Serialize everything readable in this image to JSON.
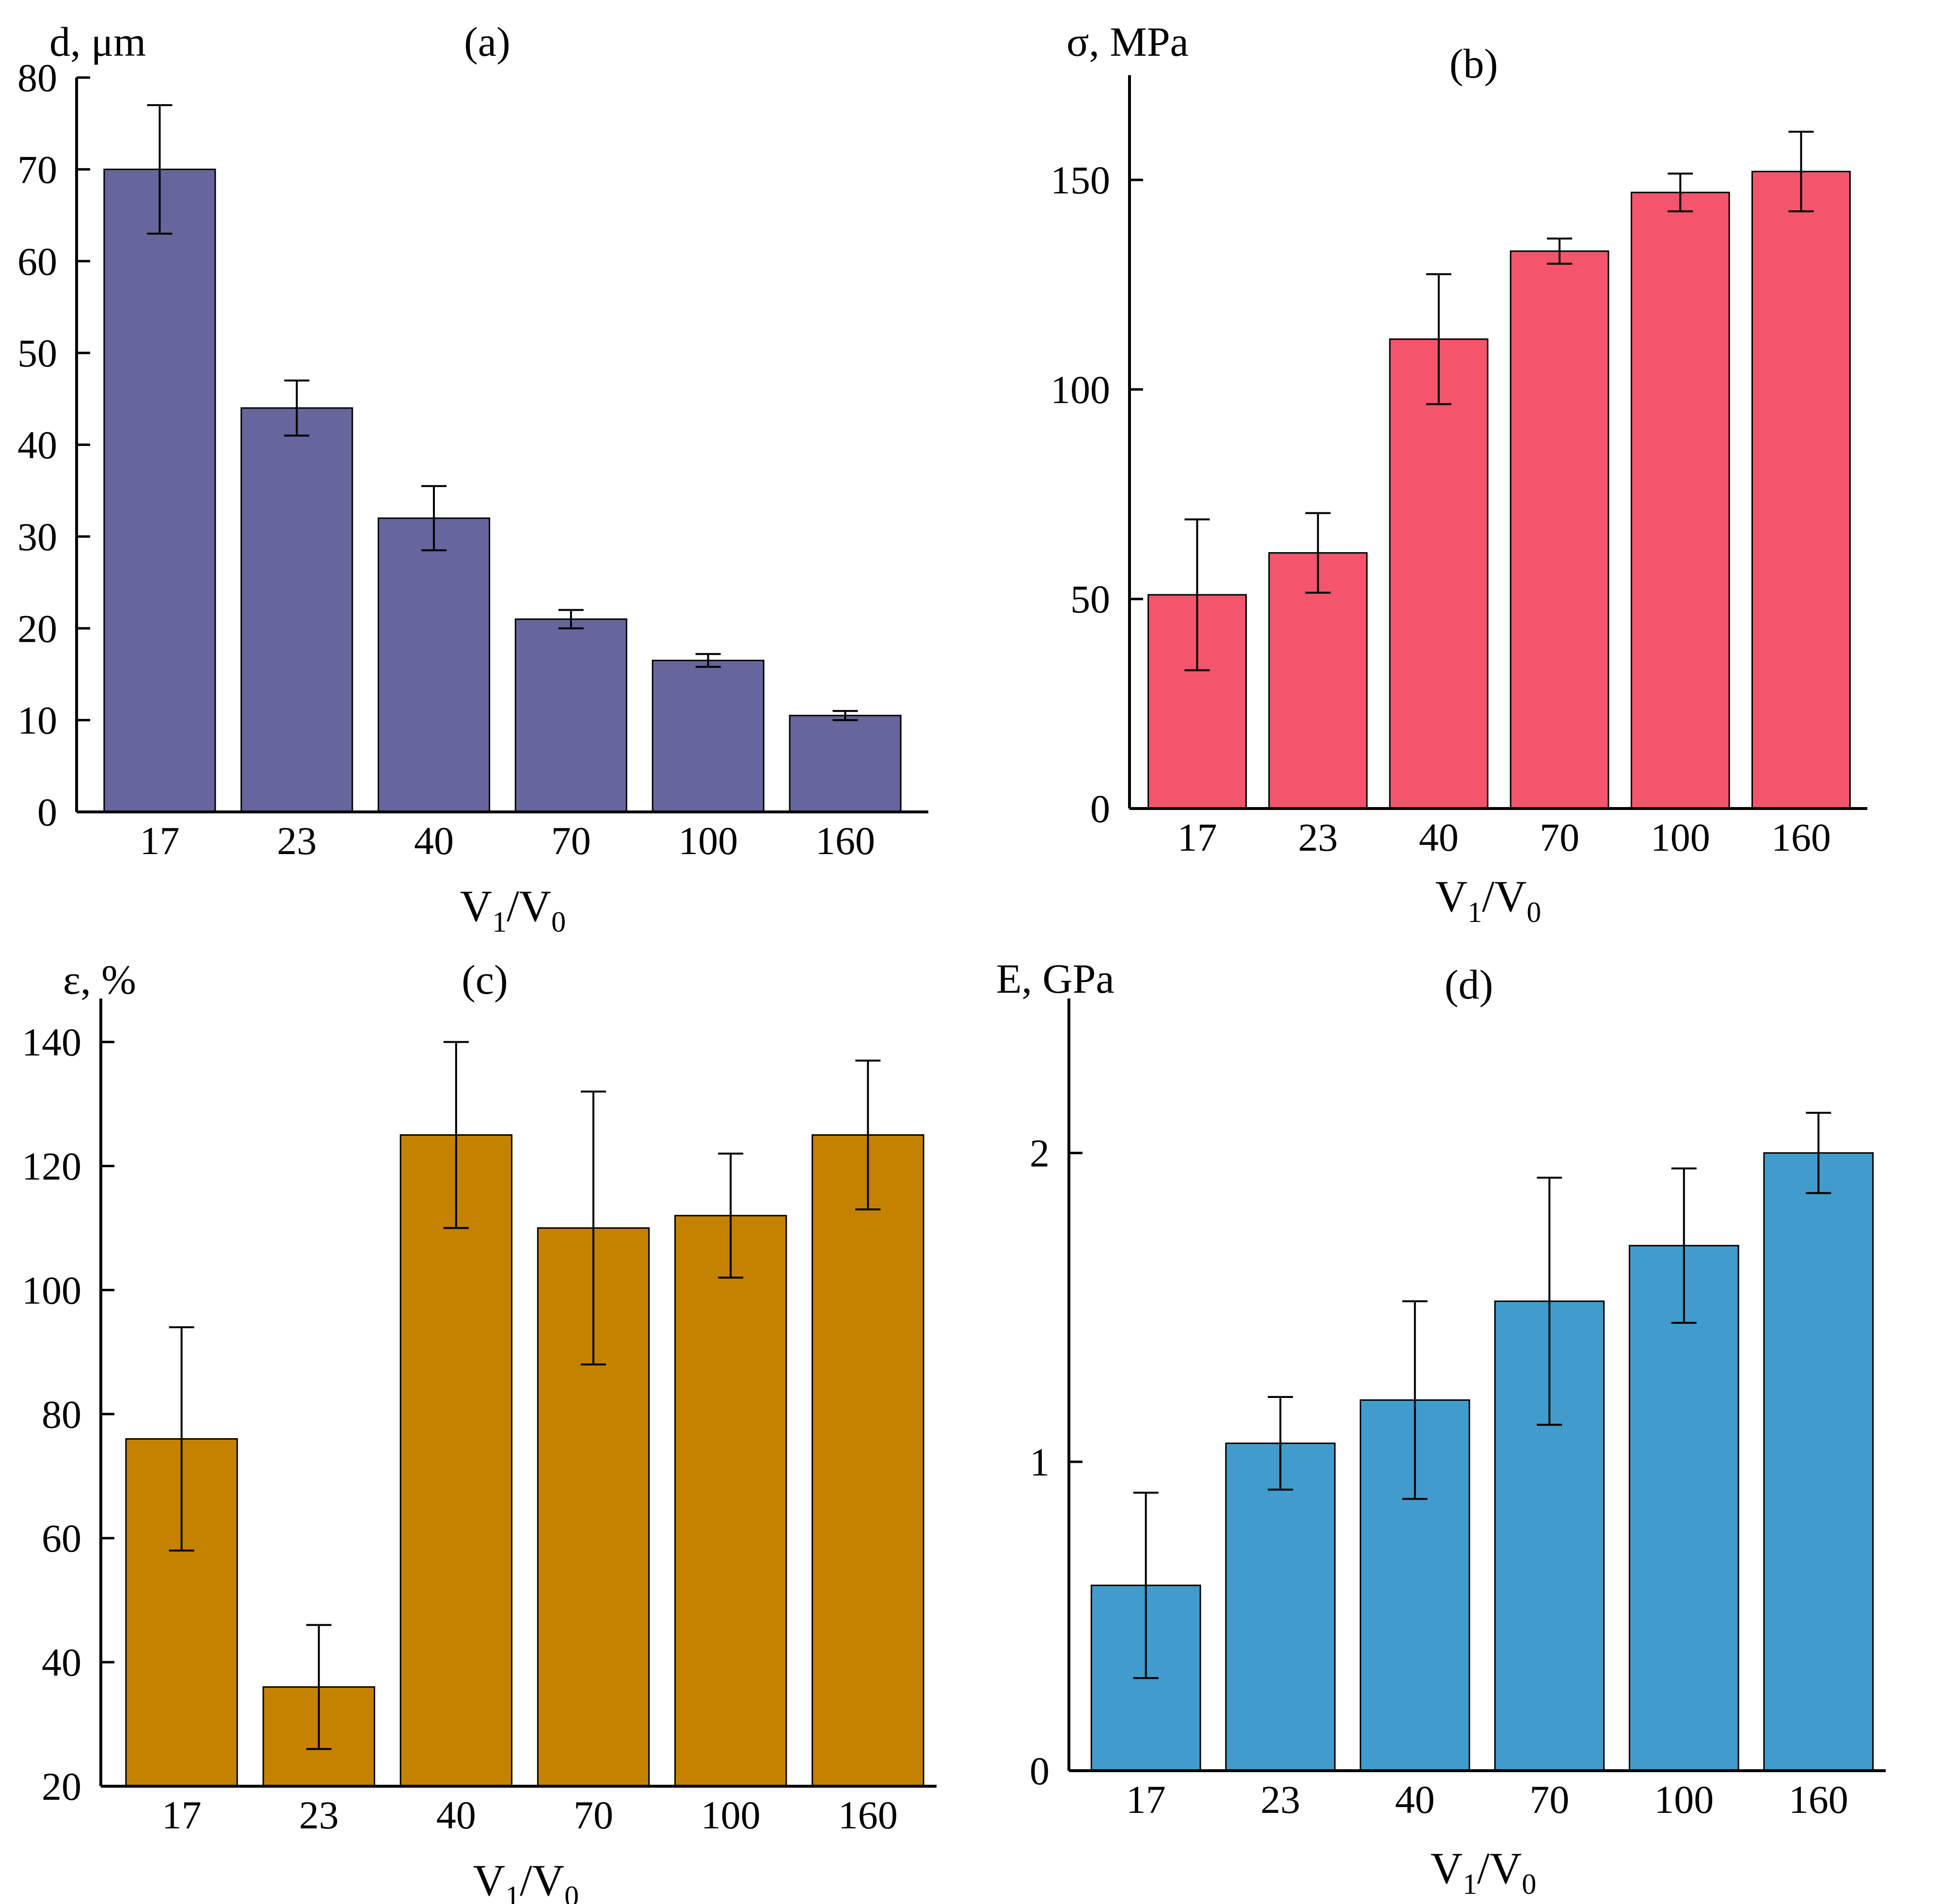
{
  "chart_data": [
    {
      "type": "bar",
      "panel_label": "(a)",
      "ylabel": "d, μm",
      "xlabel": {
        "base": "V",
        "sub1": "1",
        "slash": "/",
        "base2": "V",
        "sub2": "0"
      },
      "categories": [
        "17",
        "23",
        "40",
        "70",
        "100",
        "160"
      ],
      "values": [
        70,
        44,
        32,
        21,
        16.5,
        10.5
      ],
      "errors": [
        7,
        3,
        3.5,
        1,
        0.7,
        0.5
      ],
      "ylim": [
        0,
        80
      ],
      "yticks": [
        0,
        10,
        20,
        30,
        40,
        50,
        60,
        70,
        80
      ],
      "ytick_labels": [
        "0",
        "10",
        "20",
        "30",
        "40",
        "50",
        "60",
        "70",
        "80"
      ],
      "color": "#66669c"
    },
    {
      "type": "bar",
      "panel_label": "(b)",
      "ylabel": "σ, MPa",
      "xlabel": {
        "base": "V",
        "sub1": "1",
        "slash": "/",
        "base2": "V",
        "sub2": "0"
      },
      "categories": [
        "17",
        "23",
        "40",
        "70",
        "100",
        "160"
      ],
      "values": [
        51,
        61,
        112,
        133,
        147,
        152
      ],
      "errors": [
        18,
        9.5,
        15.5,
        3,
        4.5,
        9.5
      ],
      "ylim": [
        0,
        175
      ],
      "yticks": [
        0,
        50,
        100,
        150
      ],
      "ytick_labels": [
        "0",
        "50",
        "100",
        "150"
      ],
      "color": "#f5556c"
    },
    {
      "type": "bar",
      "panel_label": "(c)",
      "ylabel": "ε, %",
      "xlabel": {
        "base": "V",
        "sub1": "1",
        "slash": "/",
        "base2": "V",
        "sub2": "0"
      },
      "categories": [
        "17",
        "23",
        "40",
        "70",
        "100",
        "160"
      ],
      "values": [
        76,
        36,
        125,
        110,
        112,
        125
      ],
      "errors": [
        18,
        10,
        15,
        22,
        10,
        12
      ],
      "ylim": [
        20,
        147
      ],
      "yticks": [
        20,
        40,
        60,
        80,
        100,
        120,
        140
      ],
      "ytick_labels": [
        "20",
        "40",
        "60",
        "80",
        "100",
        "120",
        "140"
      ],
      "color": "#c48200"
    },
    {
      "type": "bar",
      "panel_label": "(d)",
      "ylabel": "E, GPa",
      "xlabel": {
        "base": "V",
        "sub1": "1",
        "slash": "/",
        "base2": "V",
        "sub2": "0"
      },
      "categories": [
        "17",
        "23",
        "40",
        "70",
        "100",
        "160"
      ],
      "values": [
        0.6,
        1.06,
        1.2,
        1.52,
        1.7,
        2.0
      ],
      "errors": [
        0.3,
        0.15,
        0.32,
        0.4,
        0.25,
        0.13
      ],
      "ylim": [
        0,
        2.5
      ],
      "yticks": [
        0,
        1,
        2
      ],
      "ytick_labels": [
        "0",
        "1",
        "2"
      ],
      "color": "#409ccc"
    }
  ]
}
